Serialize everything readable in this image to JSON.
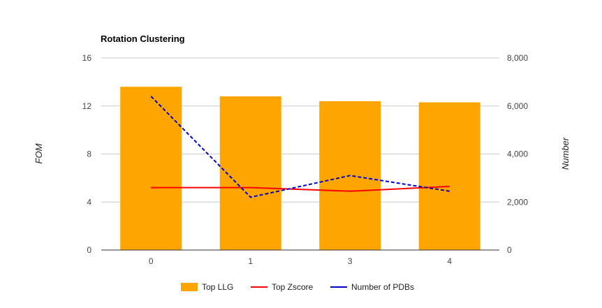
{
  "chart_data": {
    "type": "bar",
    "title": "Rotation Clustering",
    "categories": [
      "0",
      "1",
      "3",
      "4"
    ],
    "y_left": {
      "label": "FOM",
      "range": [
        0,
        16
      ],
      "ticks": [
        "0",
        "4",
        "8",
        "12",
        "16"
      ]
    },
    "y_right": {
      "label": "Number",
      "range": [
        0,
        8000
      ],
      "ticks": [
        "0",
        "2,000",
        "4,000",
        "6,000",
        "8,000"
      ]
    },
    "grid": true,
    "legend_position": "bottom",
    "series": [
      {
        "name": "Top LLG",
        "kind": "bar",
        "axis": "left",
        "color": "#ffa500",
        "values": [
          13.6,
          12.8,
          12.4,
          12.3
        ]
      },
      {
        "name": "Top Zscore",
        "kind": "line",
        "axis": "left",
        "color": "#ff0000",
        "dash": "solid",
        "values": [
          5.2,
          5.2,
          4.9,
          5.3
        ]
      },
      {
        "name": "Number of PDBs",
        "kind": "line",
        "axis": "right",
        "color": "#0000cc",
        "dash": "dashed",
        "values": [
          6400,
          2200,
          3100,
          2450
        ]
      }
    ]
  }
}
